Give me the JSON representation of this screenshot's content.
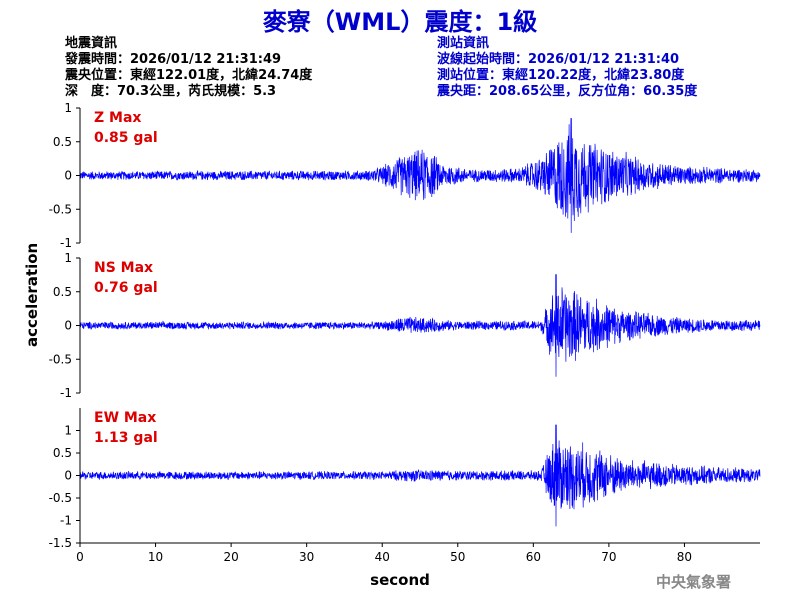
{
  "title": "麥寮（WML）震度：1級",
  "quake_info": {
    "heading": "地震資訊",
    "origin_time": "發震時間：2026/01/12 21:31:49",
    "epicenter": "震央位置：東經122.01度，北緯24.74度",
    "depth_magnitude": "深　度：70.3公里，芮氏規模：5.3"
  },
  "station_info": {
    "heading": "測站資訊",
    "wave_start": "波線起始時間：2026/01/12 21:31:40",
    "location": "測站位置：東經120.22度，北緯23.80度",
    "distance": "震央距：208.65公里，反方位角：60.35度"
  },
  "agency": "中央氣象署",
  "colors": {
    "title": "#0000cc",
    "trace": "#0000ff",
    "max_label": "#dd0000",
    "agency": "#888888"
  },
  "chart_data": {
    "type": "line",
    "xlabel": "second",
    "ylabel": "acceleration",
    "xlim": [
      0,
      90
    ],
    "x_ticks": [
      0,
      10,
      20,
      30,
      40,
      50,
      60,
      70,
      80
    ],
    "panels": [
      {
        "name": "Z",
        "max_title": "Z Max",
        "max_value": "0.85 gal",
        "ylim": [
          -1,
          1
        ],
        "y_ticks": [
          1,
          0.5,
          0,
          -0.5,
          -1
        ],
        "y_tick_labels": [
          "1",
          "0.5",
          "0",
          "-0.5",
          "-1"
        ],
        "peak": 0.85,
        "envelope": [
          [
            0,
            0.07
          ],
          [
            38,
            0.08
          ],
          [
            40,
            0.15
          ],
          [
            42,
            0.3
          ],
          [
            44,
            0.4
          ],
          [
            46,
            0.45
          ],
          [
            48,
            0.2
          ],
          [
            52,
            0.1
          ],
          [
            58,
            0.12
          ],
          [
            61,
            0.3
          ],
          [
            63,
            0.6
          ],
          [
            65,
            0.85
          ],
          [
            67,
            0.6
          ],
          [
            70,
            0.45
          ],
          [
            75,
            0.25
          ],
          [
            80,
            0.15
          ],
          [
            90,
            0.1
          ]
        ]
      },
      {
        "name": "NS",
        "max_title": "NS Max",
        "max_value": "0.76 gal",
        "ylim": [
          -1,
          1
        ],
        "y_ticks": [
          1,
          0.5,
          0,
          -0.5,
          -1
        ],
        "y_tick_labels": [
          "1",
          "0.5",
          "0",
          "-0.5",
          "-1"
        ],
        "peak": 0.76,
        "envelope": [
          [
            0,
            0.06
          ],
          [
            40,
            0.06
          ],
          [
            43,
            0.15
          ],
          [
            46,
            0.12
          ],
          [
            50,
            0.07
          ],
          [
            61,
            0.08
          ],
          [
            62,
            0.4
          ],
          [
            63,
            0.7
          ],
          [
            65,
            0.6
          ],
          [
            68,
            0.45
          ],
          [
            72,
            0.25
          ],
          [
            80,
            0.12
          ],
          [
            90,
            0.08
          ]
        ]
      },
      {
        "name": "EW",
        "max_title": "EW Max",
        "max_value": "1.13 gal",
        "ylim": [
          -1.5,
          1.5
        ],
        "y_ticks": [
          1,
          0.5,
          0,
          -0.5,
          -1,
          -1.5
        ],
        "y_tick_labels": [
          "1",
          "0.5",
          "0",
          "-0.5",
          "-1",
          "-1.5"
        ],
        "peak": 1.13,
        "envelope": [
          [
            0,
            0.1
          ],
          [
            40,
            0.1
          ],
          [
            44,
            0.15
          ],
          [
            50,
            0.12
          ],
          [
            61,
            0.12
          ],
          [
            62,
            0.6
          ],
          [
            63,
            1.0
          ],
          [
            64,
            0.9
          ],
          [
            66,
            0.8
          ],
          [
            68,
            0.7
          ],
          [
            72,
            0.4
          ],
          [
            80,
            0.25
          ],
          [
            90,
            0.15
          ]
        ]
      }
    ]
  }
}
